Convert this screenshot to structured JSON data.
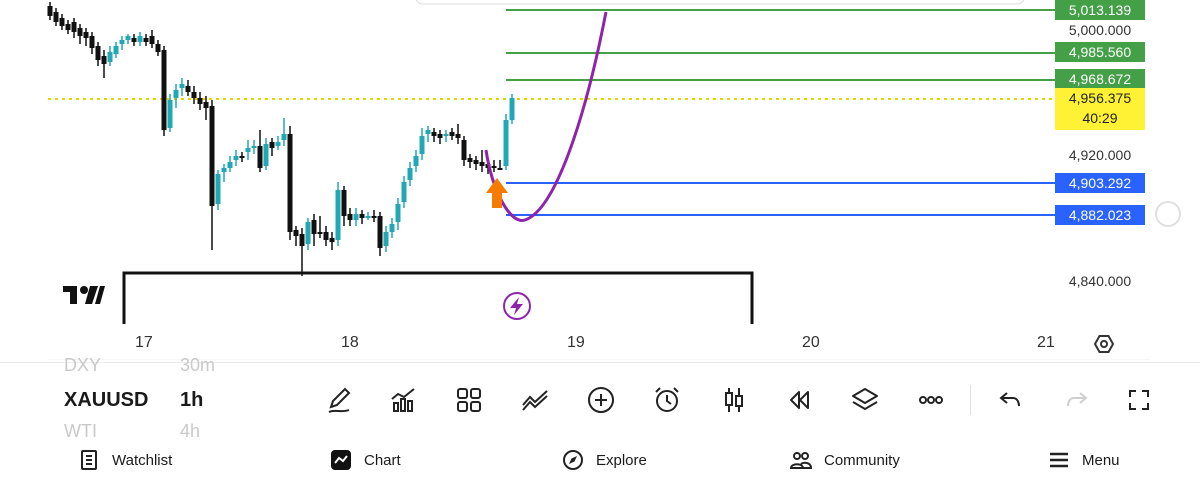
{
  "chart": {
    "price_labels": [
      {
        "text": "5,013.139",
        "style": "green"
      },
      {
        "text": "5,000.000",
        "style": "plain"
      },
      {
        "text": "4,985.560",
        "style": "green"
      },
      {
        "text": "4,968.672",
        "style": "green"
      },
      {
        "text": "4,920.000",
        "style": "plain"
      },
      {
        "text": "4,903.292",
        "style": "blue"
      },
      {
        "text": "4,882.023",
        "style": "blue"
      },
      {
        "text": "4,840.000",
        "style": "plain"
      }
    ],
    "current_price": "4,956.375",
    "countdown": "40:29",
    "date_labels": [
      "17",
      "18",
      "19",
      "20",
      "21"
    ],
    "colors": {
      "up": "#22a8b5",
      "down": "#111111",
      "target_line": "#43a047",
      "support_line": "#2962ff",
      "current_line": "#e6d600",
      "projection": "#8e24aa",
      "arrow": "#f57c00"
    },
    "logo": "TV",
    "brand_icon": "lightning-icon",
    "settings_icon": "settings-icon"
  },
  "toolbar": {
    "symbols": {
      "prev": "DXY",
      "prev_interval": "30m",
      "current": "XAUUSD",
      "current_interval": "1h",
      "next": "WTI",
      "next_interval": "4h"
    },
    "tools": [
      "pen-icon",
      "indicators-icon",
      "layout-grid-icon",
      "drawing-tools-icon",
      "add-icon",
      "alert-clock-icon",
      "candles-icon",
      "replay-icon",
      "layers-icon",
      "more-icon",
      "undo-icon",
      "redo-icon",
      "fullscreen-icon"
    ]
  },
  "nav": {
    "watchlist": "Watchlist",
    "chart": "Chart",
    "explore": "Explore",
    "community": "Community",
    "menu": "Menu"
  }
}
